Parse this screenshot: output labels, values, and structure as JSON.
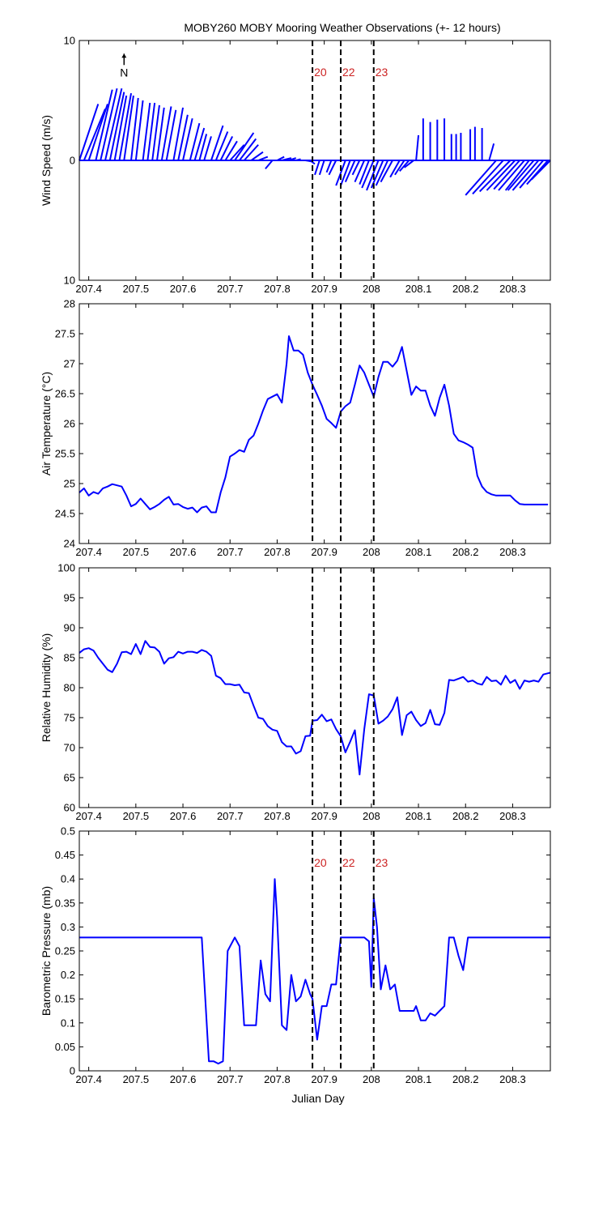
{
  "figure": {
    "title": "MOBY260 MOBY Mooring Weather Observations (+- 12 hours)",
    "xlabel": "Julian Day",
    "north_label": "N"
  },
  "colors": {
    "series": "#0000ff",
    "marker_label": "#cc2222",
    "axis": "#000000"
  },
  "markers": [
    {
      "x": 207.875,
      "label": "20"
    },
    {
      "x": 207.935,
      "label": "22"
    },
    {
      "x": 208.005,
      "label": "23"
    }
  ],
  "chart_data": [
    {
      "type": "line",
      "name": "wind",
      "xlim": [
        207.38,
        208.38
      ],
      "ylim": [
        -10,
        10
      ],
      "ylabel": "Wind Speed (m/s)",
      "xticks": [
        207.4,
        207.5,
        207.6,
        207.7,
        207.8,
        207.9,
        208,
        208.1,
        208.2,
        208.3
      ],
      "xticklabels": [
        "207.4",
        "207.5",
        "207.6",
        "207.7",
        "207.8",
        "207.9",
        "208",
        "208.1",
        "208.2",
        "208.3"
      ],
      "yticks": [
        -10,
        0,
        10
      ],
      "yticklabels": [
        "10",
        "0",
        "10"
      ],
      "show_markers": true,
      "barbs": [
        [
          207.38,
          207.42,
          4.7
        ],
        [
          207.39,
          207.435,
          4.3
        ],
        [
          207.4,
          207.44,
          4.7
        ],
        [
          207.415,
          207.45,
          5.9
        ],
        [
          207.425,
          207.46,
          6.0
        ],
        [
          207.435,
          207.47,
          6.0
        ],
        [
          207.445,
          207.475,
          5.7
        ],
        [
          207.455,
          207.48,
          5.4
        ],
        [
          207.465,
          207.49,
          5.6
        ],
        [
          207.475,
          207.495,
          5.4
        ],
        [
          207.49,
          207.505,
          5.2
        ],
        [
          207.5,
          207.515,
          5.0
        ],
        [
          207.515,
          207.53,
          4.8
        ],
        [
          207.525,
          207.54,
          4.8
        ],
        [
          207.535,
          207.55,
          4.6
        ],
        [
          207.545,
          207.56,
          4.4
        ],
        [
          207.555,
          207.575,
          4.5
        ],
        [
          207.565,
          207.585,
          4.2
        ],
        [
          207.58,
          207.6,
          4.4
        ],
        [
          207.59,
          207.61,
          3.8
        ],
        [
          207.6,
          207.62,
          3.5
        ],
        [
          207.615,
          207.635,
          3.1
        ],
        [
          207.625,
          207.645,
          2.7
        ],
        [
          207.635,
          207.65,
          2.2
        ],
        [
          207.645,
          207.66,
          2.0
        ],
        [
          207.66,
          207.685,
          2.9
        ],
        [
          207.67,
          207.695,
          2.4
        ],
        [
          207.68,
          207.705,
          2.0
        ],
        [
          207.69,
          207.715,
          1.6
        ],
        [
          207.7,
          207.73,
          1.3
        ],
        [
          207.71,
          207.75,
          2.3
        ],
        [
          207.72,
          207.755,
          1.8
        ],
        [
          207.73,
          207.76,
          1.3
        ],
        [
          207.745,
          207.77,
          0.7
        ],
        [
          207.76,
          207.78,
          0.3
        ],
        [
          207.79,
          207.775,
          -0.7
        ],
        [
          207.8,
          207.815,
          0.3
        ],
        [
          207.81,
          207.83,
          0.2
        ],
        [
          207.825,
          207.84,
          0.2
        ],
        [
          207.84,
          207.85,
          0.1
        ],
        [
          207.86,
          207.875,
          -0.1
        ],
        [
          207.87,
          207.88,
          -0.3
        ],
        [
          207.89,
          207.88,
          -1.2
        ],
        [
          207.9,
          207.89,
          -1.2
        ],
        [
          207.915,
          207.905,
          -1.0
        ],
        [
          207.925,
          207.91,
          -1.2
        ],
        [
          207.945,
          207.925,
          -2.1
        ],
        [
          207.955,
          207.935,
          -2.1
        ],
        [
          207.965,
          207.945,
          -1.8
        ],
        [
          207.975,
          207.96,
          -1.2
        ],
        [
          207.985,
          207.965,
          -1.8
        ],
        [
          207.995,
          207.975,
          -2.0
        ],
        [
          208.005,
          207.98,
          -2.3
        ],
        [
          208.015,
          207.99,
          -2.5
        ],
        [
          208.025,
          208.0,
          -2.3
        ],
        [
          208.035,
          208.01,
          -2.1
        ],
        [
          208.045,
          208.02,
          -1.8
        ],
        [
          208.06,
          208.04,
          -1.4
        ],
        [
          208.07,
          208.05,
          -1.2
        ],
        [
          208.08,
          208.06,
          -0.9
        ],
        [
          208.09,
          208.07,
          -0.6
        ],
        [
          208.095,
          208.1,
          2.1
        ],
        [
          208.11,
          208.11,
          3.5
        ],
        [
          208.125,
          208.125,
          3.2
        ],
        [
          208.14,
          208.14,
          3.4
        ],
        [
          208.155,
          208.155,
          3.5
        ],
        [
          208.17,
          208.17,
          2.2
        ],
        [
          208.18,
          208.18,
          2.2
        ],
        [
          208.19,
          208.19,
          2.3
        ],
        [
          208.21,
          208.21,
          2.6
        ],
        [
          208.22,
          208.22,
          2.8
        ],
        [
          208.235,
          208.235,
          2.7
        ],
        [
          208.25,
          208.26,
          1.4
        ],
        [
          208.265,
          208.2,
          -2.9
        ],
        [
          208.28,
          208.215,
          -2.8
        ],
        [
          208.295,
          208.23,
          -2.6
        ],
        [
          208.305,
          208.245,
          -2.5
        ],
        [
          208.315,
          208.26,
          -2.4
        ],
        [
          208.325,
          208.27,
          -2.5
        ],
        [
          208.335,
          208.285,
          -2.5
        ],
        [
          208.345,
          208.29,
          -2.5
        ],
        [
          208.355,
          208.3,
          -2.5
        ],
        [
          208.365,
          208.315,
          -2.3
        ],
        [
          208.375,
          208.33,
          -2.0
        ],
        [
          208.38,
          208.34,
          -1.6
        ]
      ]
    },
    {
      "type": "line",
      "name": "air_temperature",
      "xlim": [
        207.38,
        208.38
      ],
      "ylim": [
        24,
        28
      ],
      "ylabel": "Air Temperature (°C)",
      "xticks": [
        207.4,
        207.5,
        207.6,
        207.7,
        207.8,
        207.9,
        208,
        208.1,
        208.2,
        208.3
      ],
      "xticklabels": [
        "207.4",
        "207.5",
        "207.6",
        "207.7",
        "207.8",
        "207.9",
        "208",
        "208.1",
        "208.2",
        "208.3"
      ],
      "yticks": [
        24,
        24.5,
        25,
        25.5,
        26,
        26.5,
        27,
        27.5,
        28
      ],
      "yticklabels": [
        "24",
        "24.5",
        "25",
        "25.5",
        "26",
        "26.5",
        "27",
        "27.5",
        "28"
      ],
      "show_markers": false,
      "x": [
        207.38,
        207.39,
        207.4,
        207.41,
        207.42,
        207.43,
        207.44,
        207.45,
        207.46,
        207.47,
        207.48,
        207.49,
        207.5,
        207.51,
        207.52,
        207.53,
        207.54,
        207.55,
        207.56,
        207.57,
        207.58,
        207.59,
        207.6,
        207.61,
        207.62,
        207.63,
        207.64,
        207.65,
        207.66,
        207.67,
        207.68,
        207.69,
        207.7,
        207.71,
        207.72,
        207.73,
        207.74,
        207.75,
        207.76,
        207.77,
        207.78,
        207.79,
        207.8,
        207.81,
        207.82,
        207.825,
        207.835,
        207.845,
        207.855,
        207.865,
        207.875,
        207.885,
        207.895,
        207.905,
        207.915,
        207.925,
        207.935,
        207.945,
        207.955,
        207.965,
        207.975,
        207.985,
        207.995,
        208.005,
        208.015,
        208.025,
        208.035,
        208.045,
        208.055,
        208.065,
        208.075,
        208.085,
        208.095,
        208.105,
        208.115,
        208.125,
        208.135,
        208.145,
        208.155,
        208.165,
        208.175,
        208.185,
        208.195,
        208.205,
        208.215,
        208.225,
        208.235,
        208.245,
        208.255,
        208.265,
        208.275,
        208.285,
        208.295,
        208.305,
        208.315,
        208.325,
        208.335,
        208.345,
        208.355,
        208.365,
        208.375
      ],
      "y": [
        24.85,
        24.92,
        24.8,
        24.86,
        24.83,
        24.92,
        24.95,
        24.99,
        24.97,
        24.95,
        24.8,
        24.62,
        24.66,
        24.75,
        24.66,
        24.57,
        24.61,
        24.66,
        24.73,
        24.78,
        24.65,
        24.66,
        24.61,
        24.58,
        24.6,
        24.52,
        24.6,
        24.62,
        24.52,
        24.52,
        24.85,
        25.1,
        25.45,
        25.5,
        25.56,
        25.53,
        25.73,
        25.8,
        26.0,
        26.22,
        26.41,
        26.45,
        26.49,
        26.35,
        27.0,
        27.46,
        27.22,
        27.22,
        27.15,
        26.85,
        26.65,
        26.48,
        26.3,
        26.08,
        26.01,
        25.93,
        26.2,
        26.29,
        26.35,
        26.65,
        26.97,
        26.85,
        26.65,
        26.45,
        26.78,
        27.03,
        27.03,
        26.95,
        27.05,
        27.28,
        26.88,
        26.48,
        26.62,
        26.55,
        26.55,
        26.3,
        26.13,
        26.43,
        26.65,
        26.3,
        25.83,
        25.72,
        25.69,
        25.65,
        25.6,
        25.13,
        24.95,
        24.86,
        24.82,
        24.8,
        24.8,
        24.8,
        24.8,
        24.72,
        24.66,
        24.65,
        24.65,
        24.65,
        24.65,
        24.65,
        24.65
      ]
    },
    {
      "type": "line",
      "name": "relative_humidity",
      "xlim": [
        207.38,
        208.38
      ],
      "ylim": [
        60,
        100
      ],
      "ylabel": "Relative Humidity (%)",
      "xticks": [
        207.4,
        207.5,
        207.6,
        207.7,
        207.8,
        207.9,
        208,
        208.1,
        208.2,
        208.3
      ],
      "xticklabels": [
        "207.4",
        "207.5",
        "207.6",
        "207.7",
        "207.8",
        "207.9",
        "208",
        "208.1",
        "208.2",
        "208.3"
      ],
      "yticks": [
        60,
        65,
        70,
        75,
        80,
        85,
        90,
        95,
        100
      ],
      "yticklabels": [
        "60",
        "65",
        "70",
        "75",
        "80",
        "85",
        "90",
        "95",
        "100"
      ],
      "show_markers": false,
      "x": [
        207.38,
        207.39,
        207.4,
        207.41,
        207.42,
        207.43,
        207.44,
        207.45,
        207.46,
        207.47,
        207.48,
        207.49,
        207.5,
        207.51,
        207.52,
        207.53,
        207.54,
        207.55,
        207.56,
        207.57,
        207.58,
        207.59,
        207.6,
        207.61,
        207.62,
        207.63,
        207.64,
        207.65,
        207.66,
        207.67,
        207.68,
        207.69,
        207.7,
        207.71,
        207.72,
        207.73,
        207.74,
        207.75,
        207.76,
        207.77,
        207.78,
        207.79,
        207.8,
        207.81,
        207.82,
        207.83,
        207.84,
        207.85,
        207.86,
        207.87,
        207.875,
        207.885,
        207.895,
        207.905,
        207.915,
        207.925,
        207.935,
        207.945,
        207.955,
        207.965,
        207.975,
        207.985,
        207.995,
        208.005,
        208.015,
        208.025,
        208.035,
        208.045,
        208.055,
        208.065,
        208.075,
        208.085,
        208.095,
        208.105,
        208.115,
        208.125,
        208.135,
        208.145,
        208.155,
        208.165,
        208.175,
        208.185,
        208.195,
        208.205,
        208.215,
        208.225,
        208.235,
        208.245,
        208.255,
        208.265,
        208.275,
        208.285,
        208.295,
        208.305,
        208.315,
        208.325,
        208.335,
        208.345,
        208.355,
        208.365,
        208.375,
        208.38
      ],
      "y": [
        85.8,
        86.4,
        86.6,
        86.2,
        85.0,
        84.0,
        83.0,
        82.6,
        84.0,
        85.9,
        86.0,
        85.6,
        87.3,
        85.6,
        87.8,
        86.8,
        86.7,
        86.0,
        84.0,
        84.9,
        85.1,
        86.0,
        85.7,
        86.0,
        86.0,
        85.8,
        86.3,
        86.0,
        85.3,
        82.0,
        81.6,
        80.6,
        80.6,
        80.4,
        80.5,
        79.2,
        79.1,
        77.0,
        75.0,
        74.8,
        73.6,
        73.0,
        72.8,
        70.9,
        70.2,
        70.2,
        69.0,
        69.4,
        71.9,
        72.0,
        74.5,
        74.6,
        75.5,
        74.4,
        74.7,
        73.1,
        71.9,
        69.2,
        71.0,
        72.9,
        65.5,
        73.1,
        78.9,
        78.7,
        74.0,
        74.5,
        75.2,
        76.4,
        78.4,
        72.1,
        75.4,
        76.0,
        74.6,
        73.6,
        74.1,
        76.3,
        73.9,
        73.8,
        75.8,
        81.3,
        81.2,
        81.5,
        81.8,
        81.0,
        81.2,
        80.7,
        80.5,
        81.8,
        81.1,
        81.2,
        80.5,
        82.0,
        80.8,
        81.3,
        79.8,
        81.2,
        81.0,
        81.2,
        81.0,
        82.2,
        82.4,
        82.5
      ]
    },
    {
      "type": "line",
      "name": "barometric_pressure",
      "xlim": [
        207.38,
        208.38
      ],
      "ylim": [
        0,
        0.5
      ],
      "ylabel": "Barometric Pressure (mb)",
      "xlabel": "Julian Day",
      "xticks": [
        207.4,
        207.5,
        207.6,
        207.7,
        207.8,
        207.9,
        208,
        208.1,
        208.2,
        208.3
      ],
      "xticklabels": [
        "207.4",
        "207.5",
        "207.6",
        "207.7",
        "207.8",
        "207.9",
        "208",
        "208.1",
        "208.2",
        "208.3"
      ],
      "yticks": [
        0,
        0.05,
        0.1,
        0.15,
        0.2,
        0.25,
        0.3,
        0.35,
        0.4,
        0.45,
        0.5
      ],
      "yticklabels": [
        "0",
        "0.05",
        "0.1",
        "0.15",
        "0.2",
        "0.25",
        "0.3",
        "0.35",
        "0.4",
        "0.45",
        "0.5"
      ],
      "show_markers": true,
      "x": [
        207.38,
        207.64,
        207.655,
        207.665,
        207.675,
        207.685,
        207.695,
        207.71,
        207.72,
        207.73,
        207.74,
        207.755,
        207.765,
        207.775,
        207.785,
        207.795,
        207.8,
        207.81,
        207.82,
        207.83,
        207.84,
        207.85,
        207.86,
        207.87,
        207.875,
        207.885,
        207.895,
        207.905,
        207.915,
        207.925,
        207.935,
        207.945,
        207.955,
        207.965,
        207.975,
        207.985,
        207.995,
        208.0,
        208.005,
        208.012,
        208.02,
        208.03,
        208.04,
        208.05,
        208.06,
        208.07,
        208.08,
        208.09,
        208.095,
        208.105,
        208.115,
        208.125,
        208.135,
        208.145,
        208.155,
        208.165,
        208.175,
        208.185,
        208.195,
        208.205,
        208.215,
        208.225,
        208.38
      ],
      "y": [
        0.278,
        0.278,
        0.02,
        0.02,
        0.015,
        0.02,
        0.25,
        0.278,
        0.26,
        0.095,
        0.095,
        0.095,
        0.23,
        0.16,
        0.145,
        0.4,
        0.32,
        0.095,
        0.085,
        0.2,
        0.145,
        0.155,
        0.19,
        0.16,
        0.15,
        0.065,
        0.135,
        0.135,
        0.18,
        0.18,
        0.278,
        0.278,
        0.278,
        0.278,
        0.278,
        0.278,
        0.27,
        0.175,
        0.36,
        0.3,
        0.17,
        0.22,
        0.17,
        0.18,
        0.125,
        0.125,
        0.125,
        0.125,
        0.135,
        0.105,
        0.105,
        0.12,
        0.115,
        0.125,
        0.135,
        0.278,
        0.278,
        0.24,
        0.21,
        0.278,
        0.278,
        0.278,
        0.278
      ]
    }
  ]
}
